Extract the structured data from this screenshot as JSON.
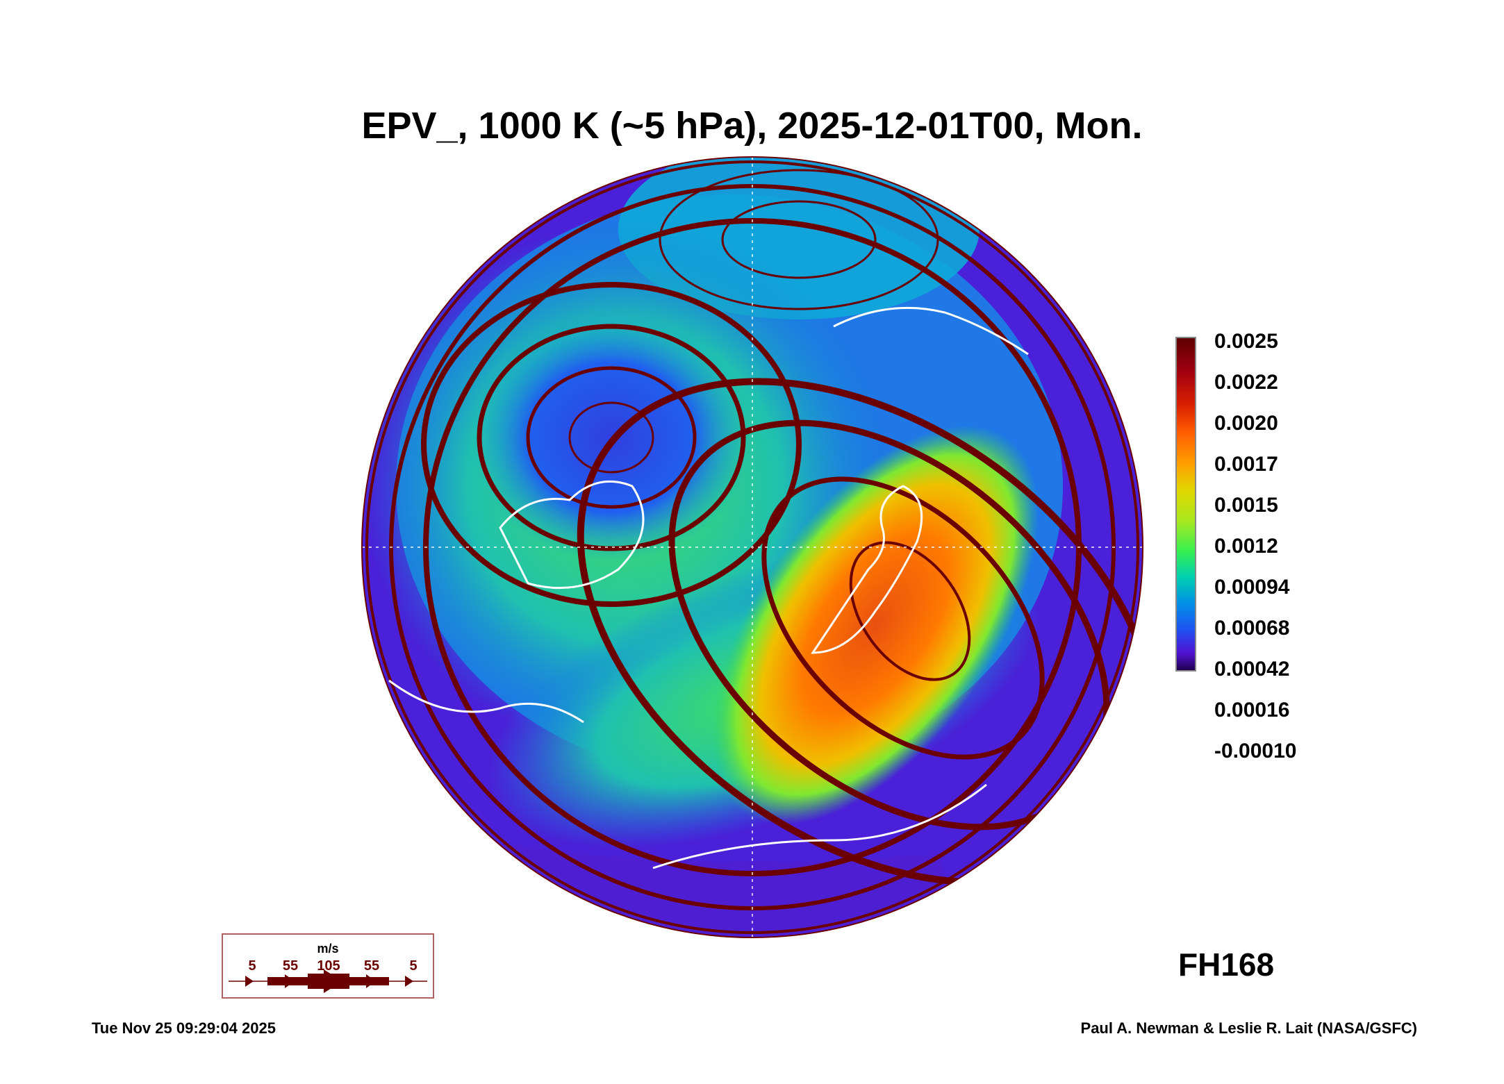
{
  "title": "EPV_, 1000 K (~5 hPa), 2025-12-01T00, Mon.",
  "colorbar": {
    "labels": [
      "0.0025",
      "0.0022",
      "0.0020",
      "0.0017",
      "0.0015",
      "0.0012",
      "0.00094",
      "0.00068",
      "0.00042",
      "0.00016",
      "-0.00010"
    ],
    "min_color": "#200050",
    "max_color": "#5e0000"
  },
  "vector_legend": {
    "unit": "m/s",
    "values": [
      "5",
      "55",
      "105",
      "55",
      "5"
    ],
    "color": "#6a0000"
  },
  "forecast_hour": "FH168",
  "footer": {
    "timestamp": "Tue Nov 25 09:29:04 2025",
    "credit": "Paul A. Newman & Leslie R. Lait (NASA/GSFC)"
  }
}
